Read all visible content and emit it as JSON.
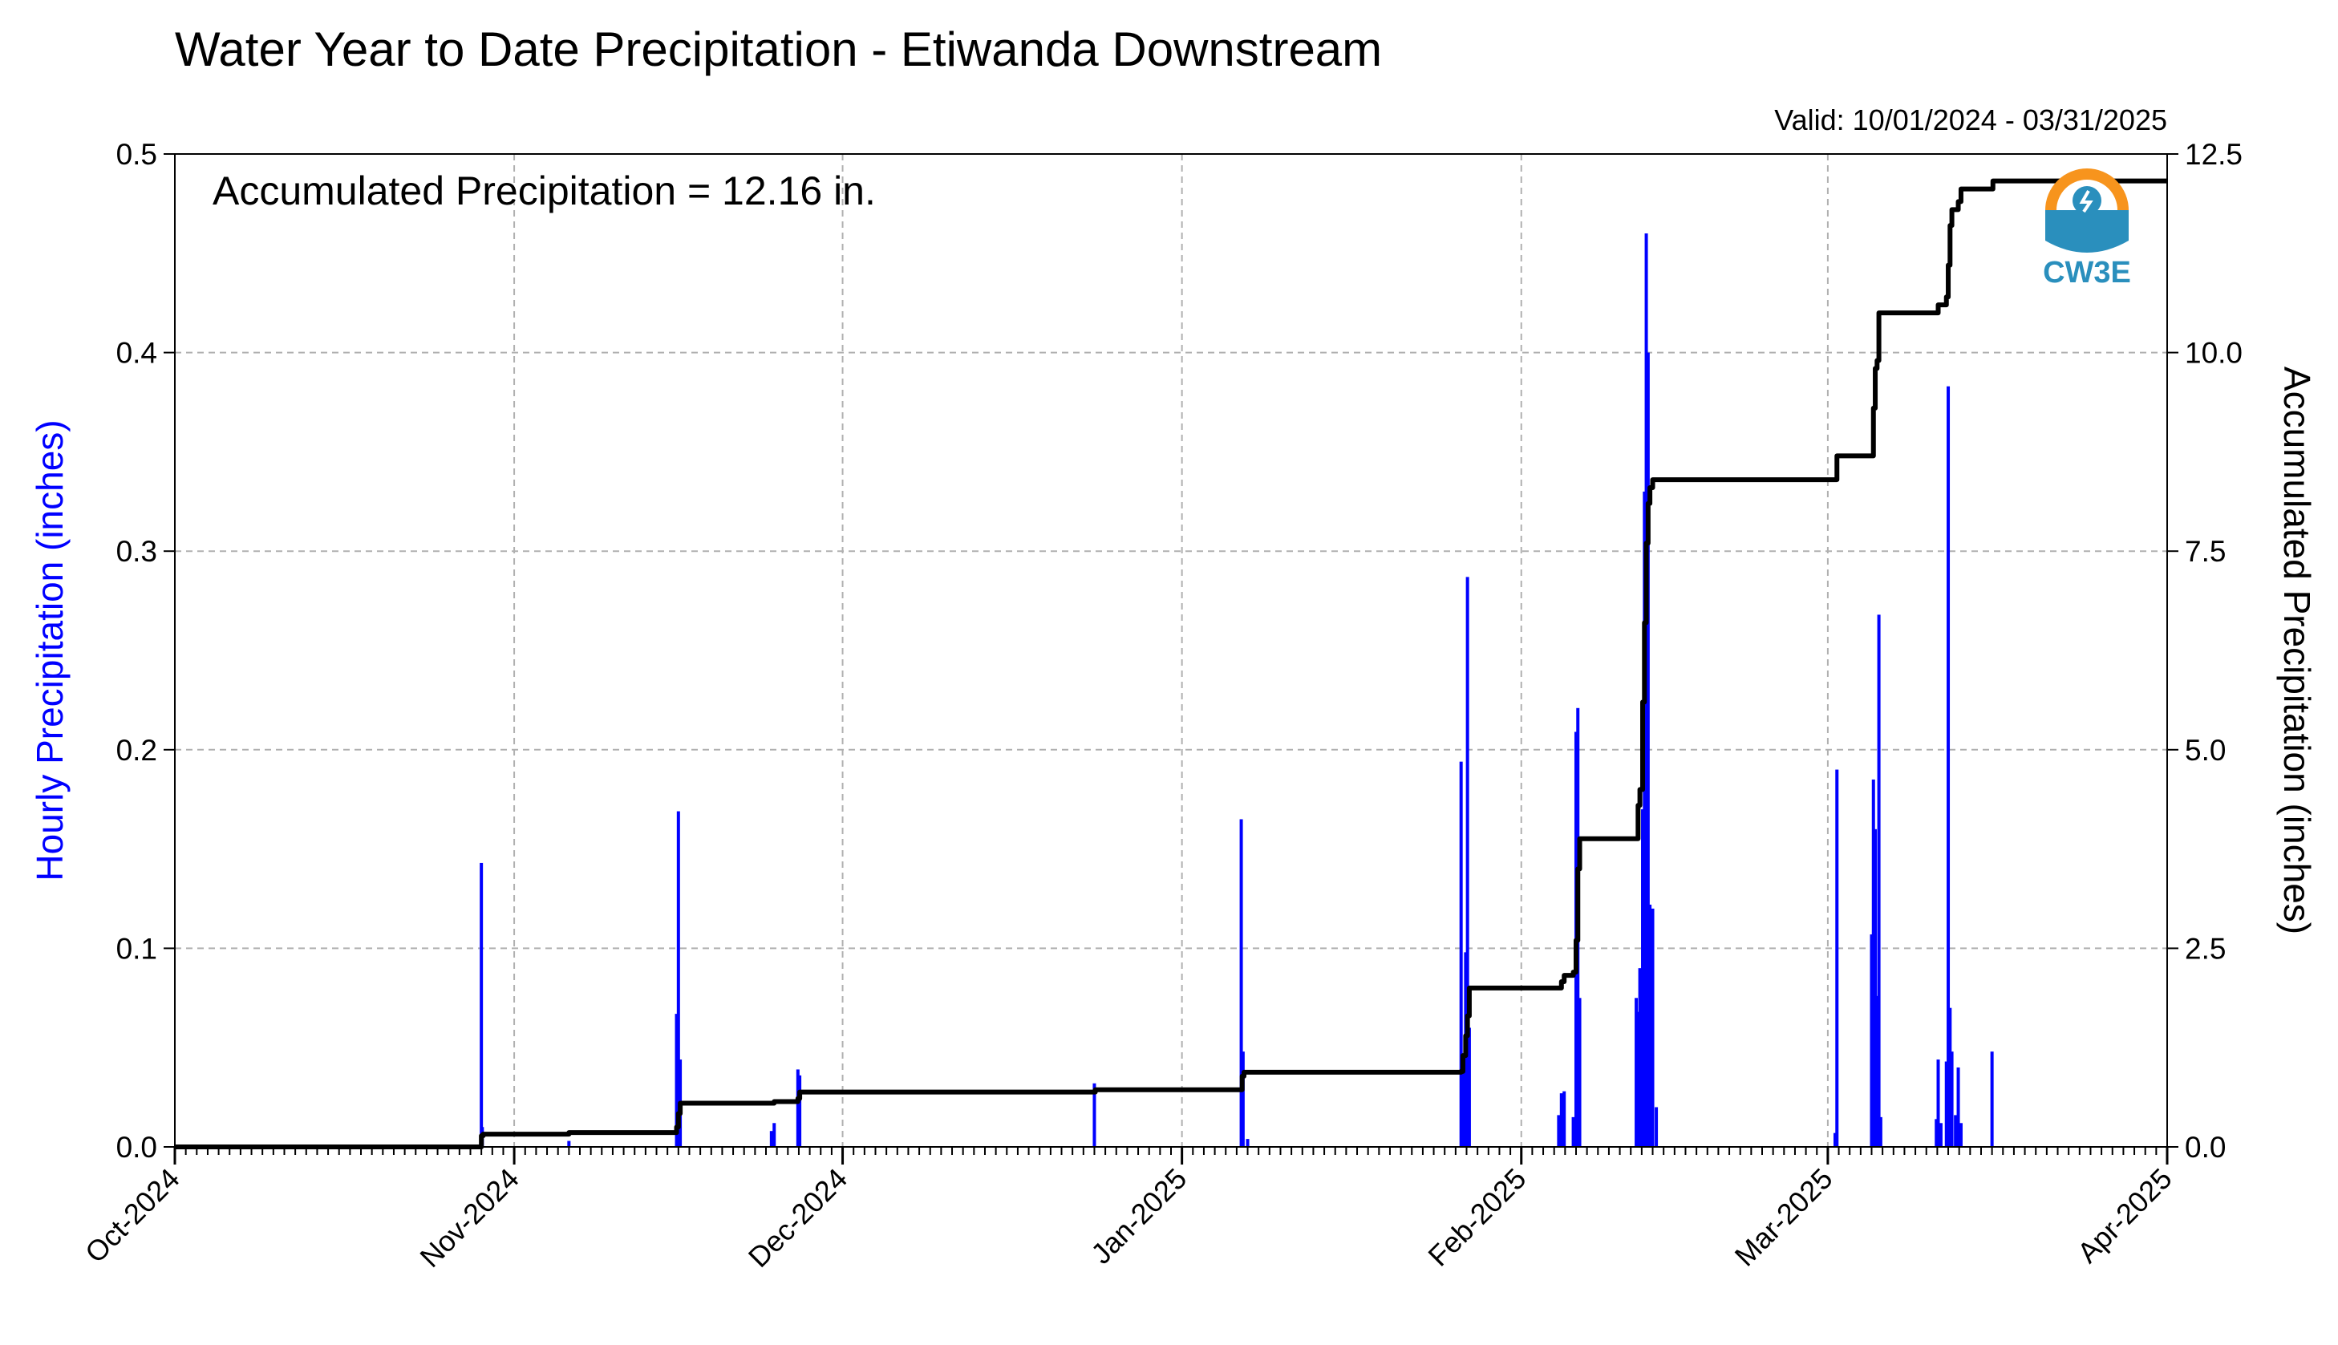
{
  "header": {
    "title": "Water Year to Date Precipitation - Etiwanda Downstream",
    "valid": "Valid: 10/01/2024 - 03/31/2025"
  },
  "annotation": "Accumulated Precipitation = 12.16 in.",
  "logo": {
    "text": "CW3E",
    "ring_color": "#f7941d",
    "wave_color": "#2a8fbd"
  },
  "colors": {
    "hourly": "#0000ff",
    "accumulated": "#000000",
    "grid": "#b0b0b0"
  },
  "chart_data": {
    "type": "bar",
    "title": "Water Year to Date Precipitation - Etiwanda Downstream",
    "xlabel": "",
    "ylabel": "Hourly Precipitation (inches)",
    "y2label": "Accumulated Precipitation (inches)",
    "xlim": [
      "2024-10-01",
      "2025-04-01"
    ],
    "ylim": [
      0,
      0.5
    ],
    "y2lim": [
      0,
      12.5
    ],
    "grid": true,
    "x_ticks": [
      {
        "date": "2024-10-01",
        "label": "Oct-2024"
      },
      {
        "date": "2024-11-01",
        "label": "Nov-2024"
      },
      {
        "date": "2024-12-01",
        "label": "Dec-2024"
      },
      {
        "date": "2025-01-01",
        "label": "Jan-2025"
      },
      {
        "date": "2025-02-01",
        "label": "Feb-2025"
      },
      {
        "date": "2025-03-01",
        "label": "Mar-2025"
      },
      {
        "date": "2025-04-01",
        "label": "Apr-2025"
      }
    ],
    "y_ticks": [
      "0.0",
      "0.1",
      "0.2",
      "0.3",
      "0.4",
      "0.5"
    ],
    "y2_ticks": [
      "0.0",
      "2.5",
      "5.0",
      "7.5",
      "10.0",
      "12.5"
    ],
    "series": [
      {
        "name": "Hourly Precipitation (inches)",
        "axis": "left",
        "kind": "bar",
        "points": [
          {
            "x": "2024-10-29T00:00",
            "y": 0.143
          },
          {
            "x": "2024-10-29T02:00",
            "y": 0.01
          },
          {
            "x": "2024-11-06T00:00",
            "y": 0.003
          },
          {
            "x": "2024-11-15T20:00",
            "y": 0.067
          },
          {
            "x": "2024-11-16T00:00",
            "y": 0.169
          },
          {
            "x": "2024-11-16T04:00",
            "y": 0.044
          },
          {
            "x": "2024-11-24T12:00",
            "y": 0.008
          },
          {
            "x": "2024-11-24T18:00",
            "y": 0.012
          },
          {
            "x": "2024-11-26T22:00",
            "y": 0.039
          },
          {
            "x": "2024-11-27T02:00",
            "y": 0.036
          },
          {
            "x": "2024-12-24T00:00",
            "y": 0.032
          },
          {
            "x": "2025-01-06T10:00",
            "y": 0.165
          },
          {
            "x": "2025-01-06T14:00",
            "y": 0.048
          },
          {
            "x": "2025-01-07T00:00",
            "y": 0.004
          },
          {
            "x": "2025-01-26T12:00",
            "y": 0.194
          },
          {
            "x": "2025-01-26T18:00",
            "y": 0.04
          },
          {
            "x": "2025-01-26T22:00",
            "y": 0.098
          },
          {
            "x": "2025-01-27T02:00",
            "y": 0.287
          },
          {
            "x": "2025-01-27T06:00",
            "y": 0.06
          },
          {
            "x": "2025-02-04T10:00",
            "y": 0.016
          },
          {
            "x": "2025-02-04T16:00",
            "y": 0.027
          },
          {
            "x": "2025-02-04T22:00",
            "y": 0.028
          },
          {
            "x": "2025-02-05T18:00",
            "y": 0.015
          },
          {
            "x": "2025-02-06T00:00",
            "y": 0.209
          },
          {
            "x": "2025-02-06T04:00",
            "y": 0.221
          },
          {
            "x": "2025-02-06T08:00",
            "y": 0.075
          },
          {
            "x": "2025-02-11T12:00",
            "y": 0.075
          },
          {
            "x": "2025-02-11T16:00",
            "y": 0.068
          },
          {
            "x": "2025-02-11T20:00",
            "y": 0.09
          },
          {
            "x": "2025-02-12T02:00",
            "y": 0.17
          },
          {
            "x": "2025-02-12T06:00",
            "y": 0.33
          },
          {
            "x": "2025-02-12T10:00",
            "y": 0.46
          },
          {
            "x": "2025-02-12T14:00",
            "y": 0.4
          },
          {
            "x": "2025-02-12T18:00",
            "y": 0.122
          },
          {
            "x": "2025-02-13T00:00",
            "y": 0.12
          },
          {
            "x": "2025-02-13T08:00",
            "y": 0.02
          },
          {
            "x": "2025-03-01T16:00",
            "y": 0.007
          },
          {
            "x": "2025-03-01T20:00",
            "y": 0.19
          },
          {
            "x": "2025-03-05T00:00",
            "y": 0.107
          },
          {
            "x": "2025-03-05T04:00",
            "y": 0.185
          },
          {
            "x": "2025-03-05T08:00",
            "y": 0.16
          },
          {
            "x": "2025-03-05T12:00",
            "y": 0.076
          },
          {
            "x": "2025-03-05T16:00",
            "y": 0.268
          },
          {
            "x": "2025-03-05T20:00",
            "y": 0.015
          },
          {
            "x": "2025-03-10T22:00",
            "y": 0.014
          },
          {
            "x": "2025-03-11T02:00",
            "y": 0.044
          },
          {
            "x": "2025-03-11T08:00",
            "y": 0.012
          },
          {
            "x": "2025-03-11T20:00",
            "y": 0.043
          },
          {
            "x": "2025-03-12T00:00",
            "y": 0.383
          },
          {
            "x": "2025-03-12T04:00",
            "y": 0.07
          },
          {
            "x": "2025-03-12T08:00",
            "y": 0.048
          },
          {
            "x": "2025-03-12T16:00",
            "y": 0.016
          },
          {
            "x": "2025-03-12T22:00",
            "y": 0.04
          },
          {
            "x": "2025-03-13T04:00",
            "y": 0.012
          },
          {
            "x": "2025-03-16T00:00",
            "y": 0.048
          }
        ]
      },
      {
        "name": "Accumulated Precipitation (inches)",
        "axis": "right",
        "kind": "step",
        "points": [
          {
            "x": "2024-10-01T00:00",
            "y": 0.0
          },
          {
            "x": "2024-10-28T22:00",
            "y": 0.0
          },
          {
            "x": "2024-10-29T00:00",
            "y": 0.14
          },
          {
            "x": "2024-10-29T04:00",
            "y": 0.16
          },
          {
            "x": "2024-11-06T00:00",
            "y": 0.18
          },
          {
            "x": "2024-11-15T16:00",
            "y": 0.18
          },
          {
            "x": "2024-11-15T20:00",
            "y": 0.25
          },
          {
            "x": "2024-11-16T00:00",
            "y": 0.42
          },
          {
            "x": "2024-11-16T04:00",
            "y": 0.55
          },
          {
            "x": "2024-11-24T12:00",
            "y": 0.55
          },
          {
            "x": "2024-11-24T18:00",
            "y": 0.57
          },
          {
            "x": "2024-11-26T22:00",
            "y": 0.61
          },
          {
            "x": "2024-11-27T02:00",
            "y": 0.69
          },
          {
            "x": "2024-12-24T00:00",
            "y": 0.69
          },
          {
            "x": "2024-12-24T02:00",
            "y": 0.72
          },
          {
            "x": "2025-01-06T10:00",
            "y": 0.72
          },
          {
            "x": "2025-01-06T12:00",
            "y": 0.89
          },
          {
            "x": "2025-01-06T16:00",
            "y": 0.94
          },
          {
            "x": "2025-01-26T12:00",
            "y": 0.95
          },
          {
            "x": "2025-01-26T16:00",
            "y": 1.15
          },
          {
            "x": "2025-01-26T22:00",
            "y": 1.4
          },
          {
            "x": "2025-01-27T02:00",
            "y": 1.65
          },
          {
            "x": "2025-01-27T06:00",
            "y": 2.0
          },
          {
            "x": "2025-02-04T10:00",
            "y": 2.0
          },
          {
            "x": "2025-02-04T16:00",
            "y": 2.08
          },
          {
            "x": "2025-02-04T22:00",
            "y": 2.16
          },
          {
            "x": "2025-02-05T18:00",
            "y": 2.2
          },
          {
            "x": "2025-02-06T00:00",
            "y": 2.6
          },
          {
            "x": "2025-02-06T04:00",
            "y": 3.5
          },
          {
            "x": "2025-02-06T08:00",
            "y": 3.88
          },
          {
            "x": "2025-02-11T12:00",
            "y": 3.88
          },
          {
            "x": "2025-02-11T16:00",
            "y": 4.3
          },
          {
            "x": "2025-02-11T20:00",
            "y": 4.5
          },
          {
            "x": "2025-02-12T02:00",
            "y": 5.6
          },
          {
            "x": "2025-02-12T06:00",
            "y": 6.6
          },
          {
            "x": "2025-02-12T10:00",
            "y": 7.6
          },
          {
            "x": "2025-02-12T14:00",
            "y": 8.1
          },
          {
            "x": "2025-02-12T18:00",
            "y": 8.3
          },
          {
            "x": "2025-02-13T00:00",
            "y": 8.4
          },
          {
            "x": "2025-03-01T16:00",
            "y": 8.4
          },
          {
            "x": "2025-03-01T20:00",
            "y": 8.7
          },
          {
            "x": "2025-03-05T00:00",
            "y": 8.7
          },
          {
            "x": "2025-03-05T04:00",
            "y": 9.3
          },
          {
            "x": "2025-03-05T08:00",
            "y": 9.8
          },
          {
            "x": "2025-03-05T12:00",
            "y": 9.9
          },
          {
            "x": "2025-03-05T16:00",
            "y": 10.5
          },
          {
            "x": "2025-03-10T22:00",
            "y": 10.5
          },
          {
            "x": "2025-03-11T02:00",
            "y": 10.6
          },
          {
            "x": "2025-03-11T20:00",
            "y": 10.7
          },
          {
            "x": "2025-03-12T00:00",
            "y": 11.1
          },
          {
            "x": "2025-03-12T04:00",
            "y": 11.6
          },
          {
            "x": "2025-03-12T08:00",
            "y": 11.8
          },
          {
            "x": "2025-03-12T22:00",
            "y": 11.9
          },
          {
            "x": "2025-03-13T04:00",
            "y": 12.06
          },
          {
            "x": "2025-03-16T00:00",
            "y": 12.06
          },
          {
            "x": "2025-03-16T02:00",
            "y": 12.16
          },
          {
            "x": "2025-03-31T23:00",
            "y": 12.16
          }
        ]
      }
    ]
  }
}
